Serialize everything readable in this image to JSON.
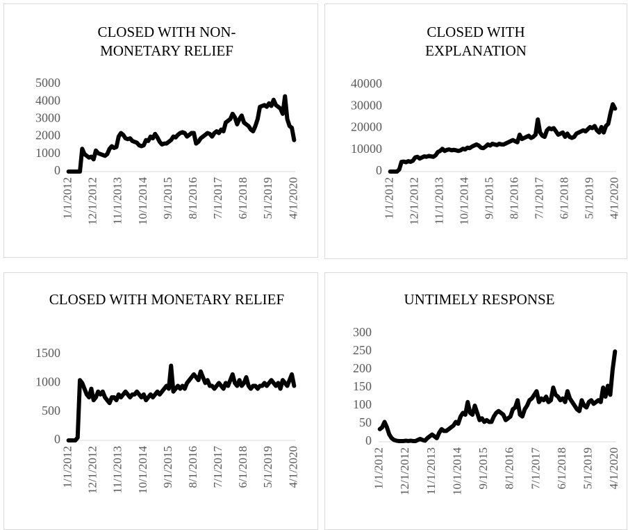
{
  "chart_data": [
    {
      "type": "line",
      "title": "CLOSED WITH NON-MONETARY RELIEF",
      "categories": [
        "1/1/2012",
        null,
        null,
        null,
        null,
        null,
        null,
        null,
        null,
        null,
        null,
        "12/1/2012",
        null,
        null,
        null,
        null,
        null,
        null,
        null,
        null,
        null,
        null,
        "11/1/2013",
        null,
        null,
        null,
        null,
        null,
        null,
        null,
        null,
        null,
        null,
        "10/1/2014",
        null,
        null,
        null,
        null,
        null,
        null,
        null,
        null,
        null,
        null,
        "9/1/2015",
        null,
        null,
        null,
        null,
        null,
        null,
        null,
        null,
        null,
        null,
        "8/1/2016",
        null,
        null,
        null,
        null,
        null,
        null,
        null,
        null,
        null,
        null,
        "7/1/2017",
        null,
        null,
        null,
        null,
        null,
        null,
        null,
        null,
        null,
        null,
        "6/1/2018",
        null,
        null,
        null,
        null,
        null,
        null,
        null,
        null,
        null,
        null,
        "5/1/2019",
        null,
        null,
        null,
        null,
        null,
        null,
        null,
        null,
        null,
        null,
        "4/1/2020"
      ],
      "values": [
        0,
        0,
        0,
        0,
        0,
        0,
        1300,
        1000,
        900,
        800,
        850,
        700,
        1200,
        1050,
        1000,
        950,
        900,
        1000,
        1300,
        1450,
        1350,
        1400,
        2000,
        2200,
        2100,
        1900,
        1850,
        1900,
        1750,
        1700,
        1650,
        1500,
        1450,
        1500,
        1800,
        1750,
        2000,
        1900,
        2150,
        1950,
        1700,
        1550,
        1600,
        1600,
        1700,
        1800,
        2000,
        1950,
        2100,
        2200,
        2250,
        2200,
        2000,
        2100,
        2200,
        2200,
        1600,
        1700,
        1900,
        2000,
        2100,
        2200,
        2150,
        2000,
        2200,
        2300,
        2200,
        2400,
        2300,
        2800,
        2900,
        3000,
        3300,
        3100,
        2700,
        3000,
        3200,
        2800,
        2700,
        2600,
        2400,
        2300,
        2600,
        3000,
        3700,
        3750,
        3800,
        3700,
        3900,
        3750,
        4100,
        3800,
        3700,
        3600,
        3300,
        4300,
        3000,
        2600,
        2500,
        1800
      ],
      "color": "#000000",
      "ylim": [
        0,
        5000
      ],
      "yticks": [
        0,
        1000,
        2000,
        3000,
        4000,
        5000
      ]
    },
    {
      "type": "line",
      "title": "CLOSED WITH EXPLANATION",
      "categories": [
        "1/1/2012",
        null,
        null,
        null,
        null,
        null,
        null,
        null,
        null,
        null,
        null,
        "12/1/2012",
        null,
        null,
        null,
        null,
        null,
        null,
        null,
        null,
        null,
        null,
        "11/1/2013",
        null,
        null,
        null,
        null,
        null,
        null,
        null,
        null,
        null,
        null,
        "10/1/2014",
        null,
        null,
        null,
        null,
        null,
        null,
        null,
        null,
        null,
        null,
        "9/1/2015",
        null,
        null,
        null,
        null,
        null,
        null,
        null,
        null,
        null,
        null,
        "8/1/2016",
        null,
        null,
        null,
        null,
        null,
        null,
        null,
        null,
        null,
        null,
        "7/1/2017",
        null,
        null,
        null,
        null,
        null,
        null,
        null,
        null,
        null,
        null,
        "6/1/2018",
        null,
        null,
        null,
        null,
        null,
        null,
        null,
        null,
        null,
        null,
        "5/1/2019",
        null,
        null,
        null,
        null,
        null,
        null,
        null,
        null,
        null,
        null,
        "4/1/2020"
      ],
      "values": [
        0,
        0,
        0,
        0,
        1000,
        4500,
        4600,
        4300,
        4800,
        4500,
        5000,
        6500,
        6800,
        6000,
        6500,
        7000,
        6800,
        7200,
        7000,
        6800,
        7500,
        9000,
        9500,
        10500,
        9500,
        10000,
        10200,
        9800,
        10000,
        9800,
        9500,
        9800,
        10500,
        10200,
        11000,
        10800,
        11500,
        12000,
        12500,
        12000,
        11000,
        10800,
        11500,
        12500,
        12000,
        12800,
        12500,
        12200,
        12800,
        12500,
        12500,
        13000,
        13500,
        14000,
        14500,
        14000,
        13500,
        17000,
        15000,
        15500,
        16000,
        16500,
        15500,
        16000,
        17000,
        24000,
        18000,
        16500,
        16000,
        19000,
        20000,
        19500,
        20000,
        18500,
        17000,
        17500,
        18000,
        16000,
        17500,
        16000,
        15500,
        16000,
        17500,
        18000,
        18500,
        19000,
        18500,
        19500,
        20500,
        20000,
        21000,
        19000,
        18000,
        20500,
        18000,
        21000,
        22000,
        27000,
        31000,
        29000
      ],
      "color": "#000000",
      "ylim": [
        0,
        40000
      ],
      "yticks": [
        0,
        10000,
        20000,
        30000,
        40000
      ]
    },
    {
      "type": "line",
      "title": "CLOSED WITH MONETARY RELIEF",
      "categories": [
        "1/1/2012",
        null,
        null,
        null,
        null,
        null,
        null,
        null,
        null,
        null,
        null,
        "12/1/2012",
        null,
        null,
        null,
        null,
        null,
        null,
        null,
        null,
        null,
        null,
        "11/1/2013",
        null,
        null,
        null,
        null,
        null,
        null,
        null,
        null,
        null,
        null,
        "10/1/2014",
        null,
        null,
        null,
        null,
        null,
        null,
        null,
        null,
        null,
        null,
        "9/1/2015",
        null,
        null,
        null,
        null,
        null,
        null,
        null,
        null,
        null,
        null,
        "8/1/2016",
        null,
        null,
        null,
        null,
        null,
        null,
        null,
        null,
        null,
        null,
        "7/1/2017",
        null,
        null,
        null,
        null,
        null,
        null,
        null,
        null,
        null,
        null,
        "6/1/2018",
        null,
        null,
        null,
        null,
        null,
        null,
        null,
        null,
        null,
        null,
        "5/1/2019",
        null,
        null,
        null,
        null,
        null,
        null,
        null,
        null,
        null,
        null,
        "4/1/2020"
      ],
      "values": [
        0,
        0,
        0,
        0,
        50,
        1050,
        1000,
        900,
        800,
        750,
        900,
        700,
        750,
        850,
        800,
        850,
        750,
        700,
        650,
        750,
        750,
        700,
        800,
        750,
        800,
        850,
        800,
        750,
        800,
        800,
        850,
        800,
        750,
        800,
        700,
        750,
        800,
        750,
        800,
        850,
        800,
        850,
        900,
        950,
        900,
        1300,
        850,
        900,
        950,
        900,
        950,
        900,
        1000,
        1050,
        1100,
        1150,
        1100,
        1050,
        1200,
        1100,
        1000,
        1050,
        950,
        950,
        900,
        950,
        1000,
        950,
        900,
        1000,
        950,
        1050,
        1150,
        1000,
        950,
        1050,
        950,
        1000,
        1100,
        950,
        900,
        950,
        950,
        900,
        950,
        950,
        1000,
        950,
        1000,
        1050,
        1000,
        950,
        1000,
        900,
        1050,
        1000,
        950,
        1050,
        1150,
        950
      ],
      "color": "#000000",
      "ylim": [
        0,
        1500
      ],
      "yticks": [
        0,
        500,
        1000,
        1500
      ]
    },
    {
      "type": "line",
      "title": "UNTIMELY RESPONSE",
      "categories": [
        "1/1/2012",
        null,
        null,
        null,
        null,
        null,
        null,
        null,
        null,
        null,
        null,
        "12/1/2012",
        null,
        null,
        null,
        null,
        null,
        null,
        null,
        null,
        null,
        null,
        "11/1/2013",
        null,
        null,
        null,
        null,
        null,
        null,
        null,
        null,
        null,
        null,
        "10/1/2014",
        null,
        null,
        null,
        null,
        null,
        null,
        null,
        null,
        null,
        null,
        "9/1/2015",
        null,
        null,
        null,
        null,
        null,
        null,
        null,
        null,
        null,
        null,
        "8/1/2016",
        null,
        null,
        null,
        null,
        null,
        null,
        null,
        null,
        null,
        null,
        "7/1/2017",
        null,
        null,
        null,
        null,
        null,
        null,
        null,
        null,
        null,
        null,
        "6/1/2018",
        null,
        null,
        null,
        null,
        null,
        null,
        null,
        null,
        null,
        null,
        "5/1/2019",
        null,
        null,
        null,
        null,
        null,
        null,
        null,
        null,
        null,
        null,
        "4/1/2020"
      ],
      "values": [
        35,
        40,
        55,
        40,
        20,
        10,
        5,
        3,
        2,
        2,
        2,
        3,
        2,
        3,
        2,
        2,
        5,
        8,
        5,
        3,
        10,
        15,
        20,
        15,
        10,
        25,
        35,
        30,
        30,
        35,
        40,
        45,
        55,
        50,
        70,
        80,
        75,
        110,
        80,
        75,
        100,
        80,
        60,
        65,
        55,
        60,
        55,
        55,
        70,
        80,
        85,
        80,
        75,
        60,
        65,
        70,
        90,
        95,
        115,
        75,
        70,
        90,
        100,
        115,
        120,
        130,
        140,
        110,
        120,
        115,
        125,
        110,
        115,
        150,
        130,
        125,
        115,
        120,
        110,
        140,
        120,
        110,
        100,
        90,
        85,
        115,
        100,
        95,
        110,
        115,
        105,
        110,
        115,
        110,
        150,
        125,
        155,
        130,
        200,
        250
      ],
      "color": "#000000",
      "ylim": [
        0,
        300
      ],
      "yticks": [
        0,
        50,
        100,
        150,
        200,
        250,
        300
      ]
    }
  ]
}
